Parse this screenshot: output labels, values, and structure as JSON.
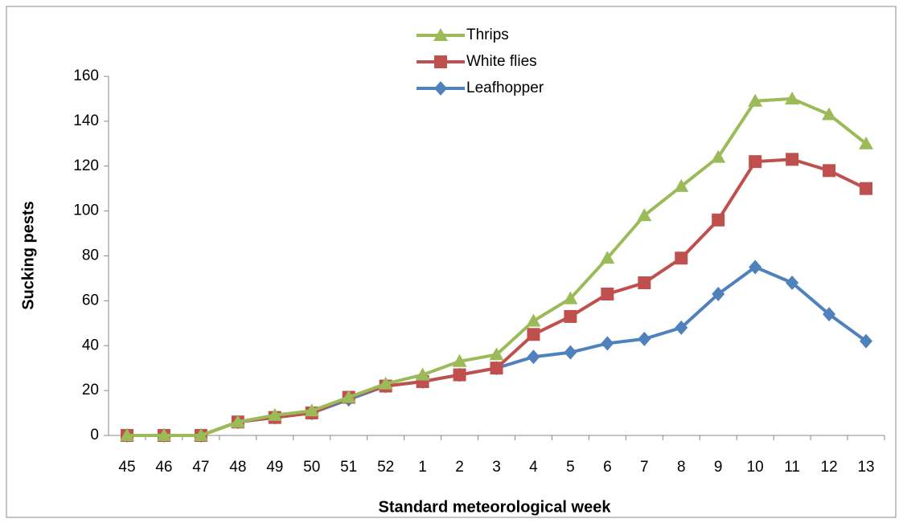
{
  "chart_data": {
    "type": "line",
    "x_label": "Standard meteorological week",
    "y_label": "Sucking pests",
    "categories": [
      "45",
      "46",
      "47",
      "48",
      "49",
      "50",
      "51",
      "52",
      "1",
      "2",
      "3",
      "4",
      "5",
      "6",
      "7",
      "8",
      "9",
      "10",
      "11",
      "12",
      "13"
    ],
    "series": [
      {
        "name": "Thrips",
        "color": "#9bbb59",
        "marker": "triangle",
        "values": [
          0,
          0,
          0,
          6,
          9,
          11,
          17,
          23,
          27,
          33,
          36,
          51,
          61,
          79,
          98,
          111,
          124,
          149,
          150,
          143,
          130
        ]
      },
      {
        "name": "White flies",
        "color": "#c0504d",
        "marker": "square",
        "values": [
          0,
          0,
          0,
          6,
          8,
          10,
          17,
          22,
          24,
          27,
          30,
          45,
          53,
          63,
          68,
          79,
          96,
          122,
          123,
          118,
          110
        ]
      },
      {
        "name": "Leafhopper",
        "color": "#4f81bd",
        "marker": "diamond",
        "values": [
          0,
          0,
          0,
          6,
          8,
          10,
          16,
          22,
          24,
          27,
          30,
          35,
          37,
          41,
          43,
          48,
          63,
          75,
          68,
          54,
          42
        ]
      }
    ],
    "ylim": [
      0,
      160
    ],
    "yticks": [
      0,
      20,
      40,
      60,
      80,
      100,
      120,
      140,
      160
    ],
    "legend": "top",
    "grid": false
  }
}
